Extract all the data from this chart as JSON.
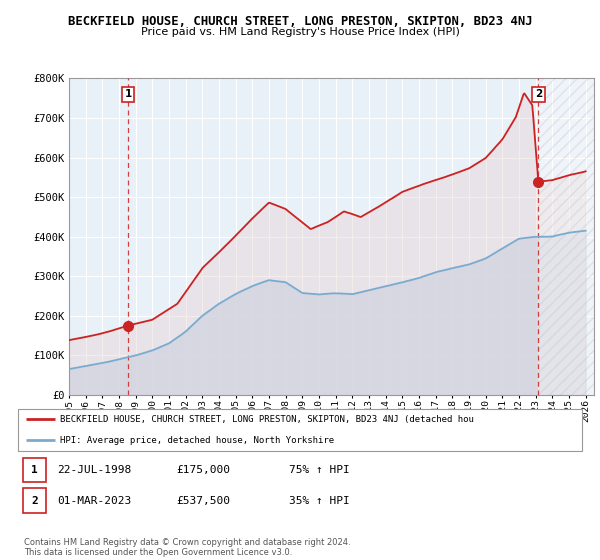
{
  "title": "BECKFIELD HOUSE, CHURCH STREET, LONG PRESTON, SKIPTON, BD23 4NJ",
  "subtitle": "Price paid vs. HM Land Registry's House Price Index (HPI)",
  "legend_line1": "BECKFIELD HOUSE, CHURCH STREET, LONG PRESTON, SKIPTON, BD23 4NJ (detached hou",
  "legend_line2": "HPI: Average price, detached house, North Yorkshire",
  "transactions": [
    {
      "num": 1,
      "date": "22-JUL-1998",
      "price": "£175,000",
      "pct": "75% ↑ HPI",
      "year": 1998.55,
      "value": 175000
    },
    {
      "num": 2,
      "date": "01-MAR-2023",
      "price": "£537,500",
      "pct": "35% ↑ HPI",
      "year": 2023.16,
      "value": 537500
    }
  ],
  "copyright": "Contains HM Land Registry data © Crown copyright and database right 2024.\nThis data is licensed under the Open Government Licence v3.0.",
  "hpi_color": "#aac4e0",
  "price_color": "#cc2222",
  "fill_color": "#ddeeff",
  "hatch_color": "#cccccc",
  "bg_color": "#ffffff",
  "grid_color": "#cccccc",
  "ylim": [
    0,
    800000
  ],
  "xlim_start": 1995.0,
  "xlim_end": 2026.5,
  "yticks": [
    0,
    100000,
    200000,
    300000,
    400000,
    500000,
    600000,
    700000,
    800000
  ],
  "ytick_labels": [
    "£0",
    "£100K",
    "£200K",
    "£300K",
    "£400K",
    "£500K",
    "£600K",
    "£700K",
    "£800K"
  ],
  "xticks": [
    1995,
    1996,
    1997,
    1998,
    1999,
    2000,
    2001,
    2002,
    2003,
    2004,
    2005,
    2006,
    2007,
    2008,
    2009,
    2010,
    2011,
    2012,
    2013,
    2014,
    2015,
    2016,
    2017,
    2018,
    2019,
    2020,
    2021,
    2022,
    2023,
    2024,
    2025,
    2026
  ]
}
